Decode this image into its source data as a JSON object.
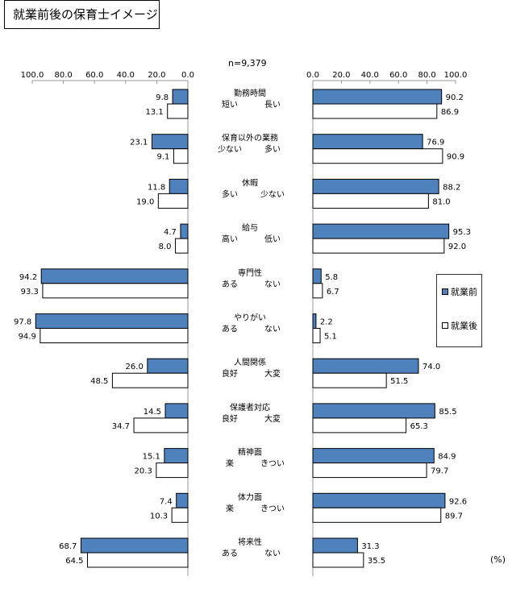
{
  "chart_data": {
    "type": "bar",
    "title": "就業前後の保育士イメージ",
    "sample": "n=9,379",
    "unit": "(%)",
    "left_axis_ticks": [
      "100.0",
      "80.0",
      "60.0",
      "40.0",
      "20.0",
      "0.0"
    ],
    "right_axis_ticks": [
      "0.0",
      "20.0",
      "40.0",
      "60.0",
      "80.0",
      "100.0"
    ],
    "xlim": [
      0,
      100
    ],
    "legend": [
      {
        "name": "就業前",
        "color": "#4f81bd"
      },
      {
        "name": "就業後",
        "color": "#ffffff"
      }
    ],
    "legend_position": "right",
    "categories": [
      {
        "name": "勤務時間",
        "left": "短い",
        "right": "長い",
        "left_before": "9.8",
        "left_after": "13.1",
        "right_before": "90.2",
        "right_after": "86.9"
      },
      {
        "name": "保育以外の業務",
        "left": "少ない",
        "right": "多い",
        "left_before": "23.1",
        "left_after": "9.1",
        "right_before": "76.9",
        "right_after": "90.9"
      },
      {
        "name": "休暇",
        "left": "多い",
        "right": "少ない",
        "left_before": "11.8",
        "left_after": "19.0",
        "right_before": "88.2",
        "right_after": "81.0"
      },
      {
        "name": "給与",
        "left": "高い",
        "right": "低い",
        "left_before": "4.7",
        "left_after": "8.0",
        "right_before": "95.3",
        "right_after": "92.0"
      },
      {
        "name": "専門性",
        "left": "ある",
        "right": "ない",
        "left_before": "94.2",
        "left_after": "93.3",
        "right_before": "5.8",
        "right_after": "6.7"
      },
      {
        "name": "やりがい",
        "left": "ある",
        "right": "ない",
        "left_before": "97.8",
        "left_after": "94.9",
        "right_before": "2.2",
        "right_after": "5.1"
      },
      {
        "name": "人間関係",
        "left": "良好",
        "right": "大変",
        "left_before": "26.0",
        "left_after": "48.5",
        "right_before": "74.0",
        "right_after": "51.5"
      },
      {
        "name": "保護者対応",
        "left": "良好",
        "right": "大変",
        "left_before": "14.5",
        "left_after": "34.7",
        "right_before": "85.5",
        "right_after": "65.3"
      },
      {
        "name": "精神面",
        "left": "楽",
        "right": "きつい",
        "left_before": "15.1",
        "left_after": "20.3",
        "right_before": "84.9",
        "right_after": "79.7"
      },
      {
        "name": "体力面",
        "left": "楽",
        "right": "きつい",
        "left_before": "7.4",
        "left_after": "10.3",
        "right_before": "92.6",
        "right_after": "89.7"
      },
      {
        "name": "将来性",
        "left": "ある",
        "right": "ない",
        "left_before": "68.7",
        "left_after": "64.5",
        "right_before": "31.3",
        "right_after": "35.5"
      }
    ]
  }
}
